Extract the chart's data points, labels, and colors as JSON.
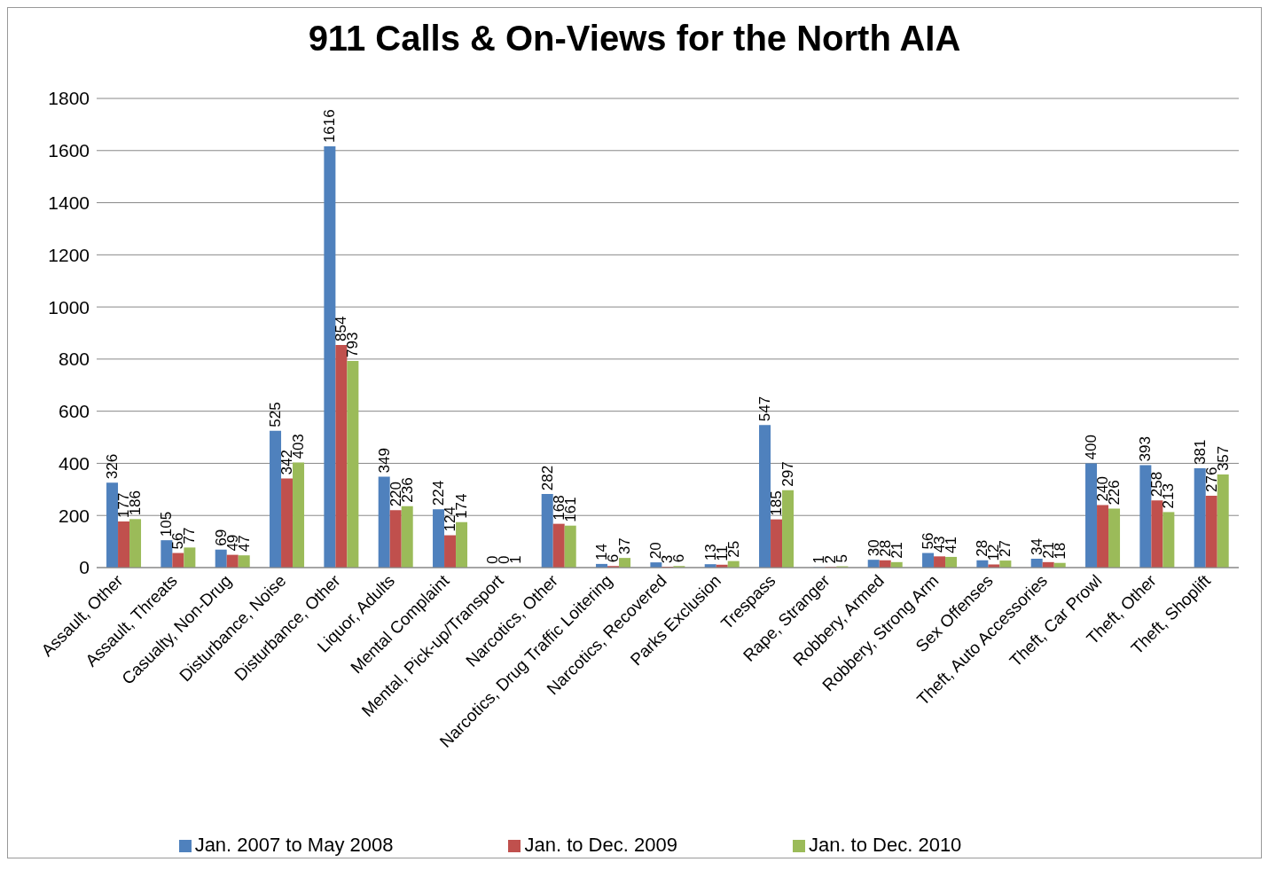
{
  "chart_data": {
    "type": "bar",
    "title": "911 Calls & On-Views for the North AIA",
    "categories": [
      "Assault, Other",
      "Assault, Threats",
      "Casualty, Non-Drug",
      "Disturbance, Noise",
      "Disturbance, Other",
      "Liquor, Adults",
      "Mental Complaint",
      "Mental, Pick-up/Transport",
      "Narcotics, Other",
      "Narcotics, Drug Traffic Loitering",
      "Narcotics, Recovered",
      "Parks Exclusion",
      "Trespass",
      "Rape, Stranger",
      "Robbery, Armed",
      "Robbery, Strong Arm",
      "Sex Offenses",
      "Theft, Auto Accessories",
      "Theft, Car Prowl",
      "Theft, Other",
      "Theft, Shoplift"
    ],
    "series": [
      {
        "name": "Jan. 2007 to May 2008",
        "color": "#4f81bd",
        "values": [
          326,
          105,
          69,
          525,
          1616,
          349,
          224,
          0,
          282,
          14,
          20,
          13,
          547,
          1,
          30,
          56,
          28,
          34,
          400,
          393,
          381
        ]
      },
      {
        "name": "Jan. to Dec. 2009",
        "color": "#c0504d",
        "values": [
          177,
          56,
          49,
          342,
          854,
          220,
          124,
          0,
          168,
          6,
          3,
          11,
          185,
          2,
          28,
          43,
          12,
          21,
          240,
          258,
          276
        ]
      },
      {
        "name": "Jan. to Dec. 2010",
        "color": "#9bbb59",
        "values": [
          186,
          77,
          47,
          403,
          793,
          236,
          174,
          1,
          161,
          37,
          6,
          25,
          297,
          5,
          21,
          41,
          27,
          18,
          226,
          213,
          357
        ]
      }
    ],
    "ylim": [
      0,
      1800
    ],
    "yticks": [
      0,
      200,
      400,
      600,
      800,
      1000,
      1200,
      1400,
      1600,
      1800
    ],
    "grid": "y",
    "legend": "bottom",
    "data_labels": true
  }
}
